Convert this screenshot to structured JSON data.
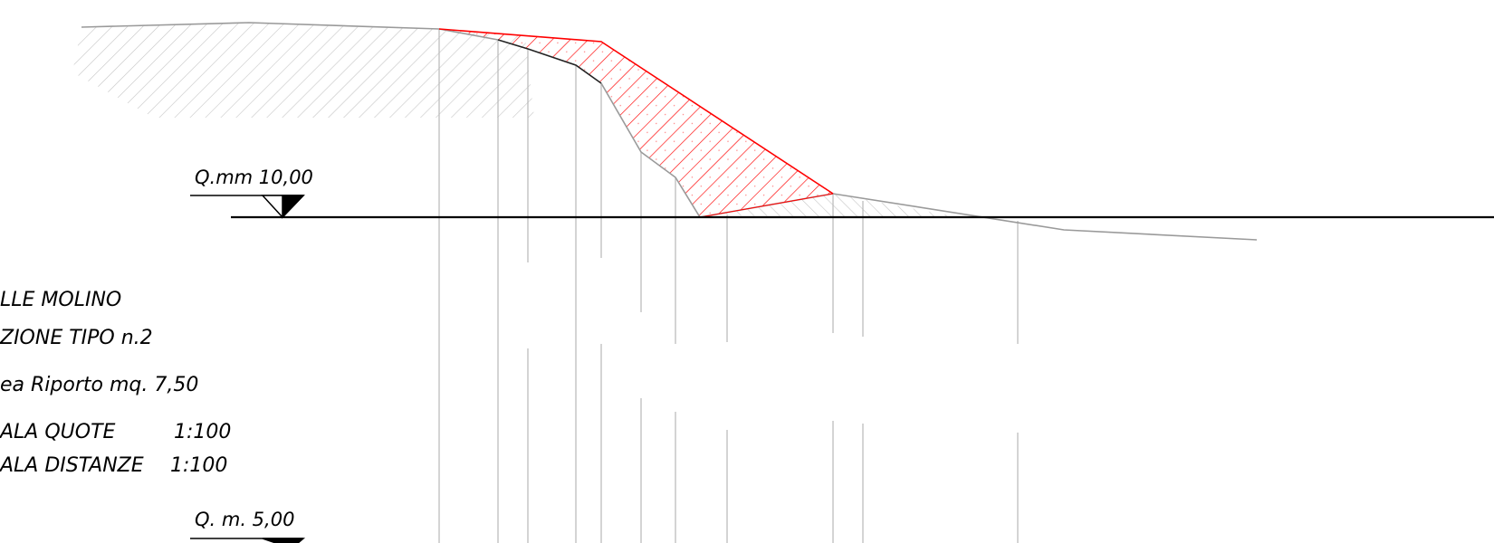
{
  "levels": {
    "upper_label": "Q.mm 10,00",
    "lower_label": "Q. m. 5,00"
  },
  "info": {
    "line1": "LLE MOLINO",
    "line2": "ZIONE TIPO n.2",
    "line3": "ea Riporto mq. 7,50",
    "line4_label": "ALA QUOTE",
    "line4_value": "1:100",
    "line5_label": "ALA DISTANZE",
    "line5_value": "1:100"
  },
  "colors": {
    "fill_hatch": "#ff0000",
    "terrain": "#9a9a9a",
    "terrain_hatch": "#c0c0c0",
    "reference_line": "#000000",
    "station_lines": "#b8b8b8"
  }
}
